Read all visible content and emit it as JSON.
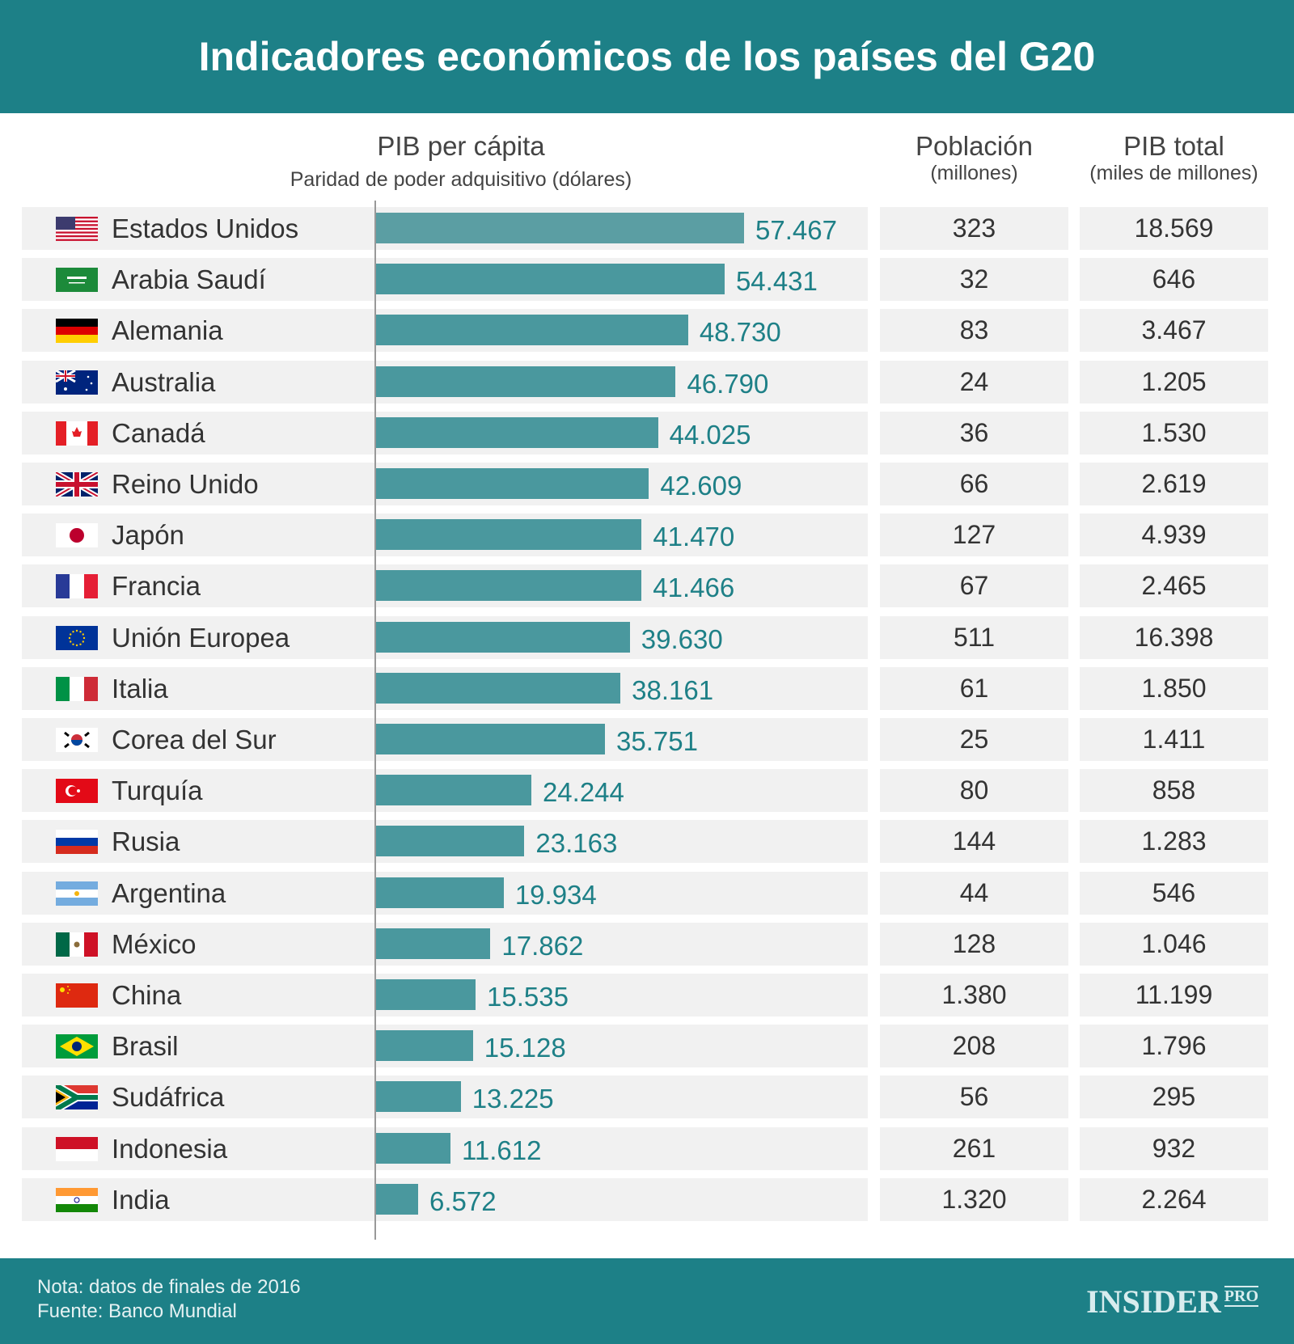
{
  "title": "Indicadores económicos de los países del G20",
  "columns": {
    "gdp_pc": "PIB per cápita",
    "gdp_pc_sub": "Paridad de poder adquisitivo (dólares)",
    "pop": "Población",
    "pop_sub": "(millones)",
    "gdp": "PIB total",
    "gdp_sub": "(miles de millones)"
  },
  "chart_data": {
    "type": "bar",
    "orientation": "horizontal",
    "title": "PIB per cápita",
    "subtitle": "Paridad de poder adquisitivo (dólares)",
    "bar_color": "#4a989e",
    "label_color": "#1e8087",
    "rows": [
      {
        "country": "Estados Unidos",
        "flag": "us-flag",
        "gdp_pc": 57467,
        "gdp_pc_label": "57.467",
        "pop": "323",
        "gdp": "18.569"
      },
      {
        "country": "Arabia Saudí",
        "flag": "saudi-arabia-flag",
        "gdp_pc": 54431,
        "gdp_pc_label": "54.431",
        "pop": "32",
        "gdp": "646"
      },
      {
        "country": "Alemania",
        "flag": "germany-flag",
        "gdp_pc": 48730,
        "gdp_pc_label": "48.730",
        "pop": "83",
        "gdp": "3.467"
      },
      {
        "country": "Australia",
        "flag": "australia-flag",
        "gdp_pc": 46790,
        "gdp_pc_label": "46.790",
        "pop": "24",
        "gdp": "1.205"
      },
      {
        "country": "Canadá",
        "flag": "canada-flag",
        "gdp_pc": 44025,
        "gdp_pc_label": "44.025",
        "pop": "36",
        "gdp": "1.530"
      },
      {
        "country": "Reino Unido",
        "flag": "uk-flag",
        "gdp_pc": 42609,
        "gdp_pc_label": "42.609",
        "pop": "66",
        "gdp": "2.619"
      },
      {
        "country": "Japón",
        "flag": "japan-flag",
        "gdp_pc": 41470,
        "gdp_pc_label": "41.470",
        "pop": "127",
        "gdp": "4.939"
      },
      {
        "country": "Francia",
        "flag": "france-flag",
        "gdp_pc": 41466,
        "gdp_pc_label": "41.466",
        "pop": "67",
        "gdp": "2.465"
      },
      {
        "country": "Unión Europea",
        "flag": "eu-flag",
        "gdp_pc": 39630,
        "gdp_pc_label": "39.630",
        "pop": "511",
        "gdp": "16.398"
      },
      {
        "country": "Italia",
        "flag": "italy-flag",
        "gdp_pc": 38161,
        "gdp_pc_label": "38.161",
        "pop": "61",
        "gdp": "1.850"
      },
      {
        "country": "Corea del Sur",
        "flag": "south-korea-flag",
        "gdp_pc": 35751,
        "gdp_pc_label": "35.751",
        "pop": "25",
        "gdp": "1.411"
      },
      {
        "country": "Turquía",
        "flag": "turkey-flag",
        "gdp_pc": 24244,
        "gdp_pc_label": "24.244",
        "pop": "80",
        "gdp": "858"
      },
      {
        "country": "Rusia",
        "flag": "russia-flag",
        "gdp_pc": 23163,
        "gdp_pc_label": "23.163",
        "pop": "144",
        "gdp": "1.283"
      },
      {
        "country": "Argentina",
        "flag": "argentina-flag",
        "gdp_pc": 19934,
        "gdp_pc_label": "19.934",
        "pop": "44",
        "gdp": "546"
      },
      {
        "country": "México",
        "flag": "mexico-flag",
        "gdp_pc": 17862,
        "gdp_pc_label": "17.862",
        "pop": "128",
        "gdp": "1.046"
      },
      {
        "country": "China",
        "flag": "china-flag",
        "gdp_pc": 15535,
        "gdp_pc_label": "15.535",
        "pop": "1.380",
        "gdp": "11.199"
      },
      {
        "country": "Brasil",
        "flag": "brazil-flag",
        "gdp_pc": 15128,
        "gdp_pc_label": "15.128",
        "pop": "208",
        "gdp": "1.796"
      },
      {
        "country": "Sudáfrica",
        "flag": "south-africa-flag",
        "gdp_pc": 13225,
        "gdp_pc_label": "13.225",
        "pop": "56",
        "gdp": "295"
      },
      {
        "country": "Indonesia",
        "flag": "indonesia-flag",
        "gdp_pc": 11612,
        "gdp_pc_label": "11.612",
        "pop": "261",
        "gdp": "932"
      },
      {
        "country": "India",
        "flag": "india-flag",
        "gdp_pc": 6572,
        "gdp_pc_label": "6.572",
        "pop": "1.320",
        "gdp": "2.264"
      }
    ]
  },
  "footer": {
    "note": "Nota: datos de finales de 2016",
    "source": "Fuente: Banco Mundial",
    "logo": "INSIDER",
    "logo_sup": "PRO"
  }
}
